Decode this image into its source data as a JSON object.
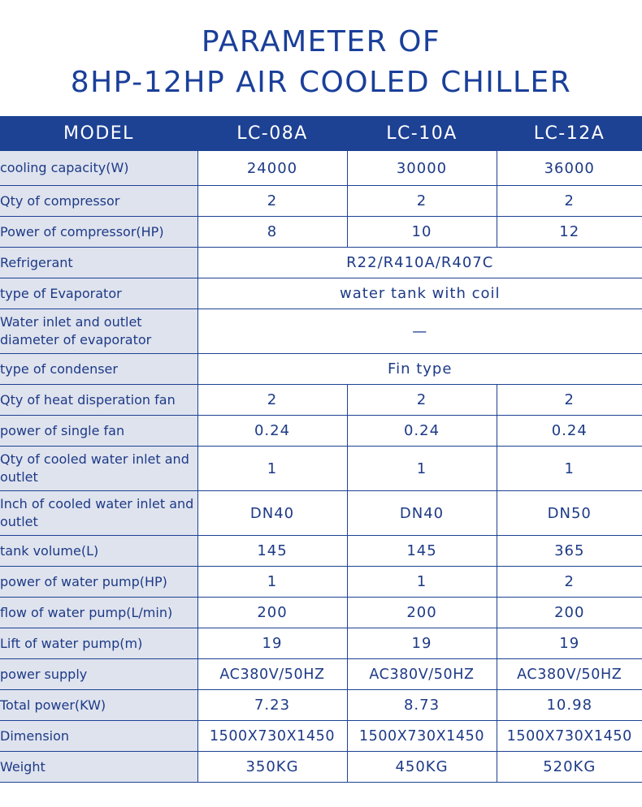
{
  "title": {
    "line1": "PARAMETER OF",
    "line2": "8HP-12HP AIR COOLED CHILLER"
  },
  "header": {
    "model_label": "MODEL",
    "models": [
      "LC-08A",
      "LC-10A",
      "LC-12A"
    ]
  },
  "rows": {
    "cooling_capacity": {
      "label": "cooling capacity(W)",
      "values": [
        "24000",
        "30000",
        "36000"
      ]
    },
    "qty_compressor": {
      "label": "Qty of compressor",
      "values": [
        "2",
        "2",
        "2"
      ]
    },
    "power_compressor": {
      "label": "Power of compressor(HP)",
      "values": [
        "8",
        "10",
        "12"
      ]
    },
    "refrigerant": {
      "label": "Refrigerant",
      "value": "R22/R410A/R407C"
    },
    "evaporator_type": {
      "label": "type of Evaporator",
      "value": "water tank with coil"
    },
    "evaporator_diameter": {
      "label": "Water inlet and outlet diameter of evaporator",
      "value": "—"
    },
    "condenser_type": {
      "label": "type of condenser",
      "value": "Fin type"
    },
    "qty_fan": {
      "label": "Qty of heat disperation fan",
      "values": [
        "2",
        "2",
        "2"
      ]
    },
    "fan_power": {
      "label": "power of single fan",
      "values": [
        "0.24",
        "0.24",
        "0.24"
      ]
    },
    "qty_water_inlet": {
      "label": "Qty of cooled water inlet and outlet",
      "values": [
        "1",
        "1",
        "1"
      ]
    },
    "inch_water_inlet": {
      "label": "Inch of cooled water inlet and outlet",
      "values": [
        "DN40",
        "DN40",
        "DN50"
      ]
    },
    "tank_volume": {
      "label": "tank volume(L)",
      "values": [
        "145",
        "145",
        "365"
      ]
    },
    "pump_power": {
      "label": "power of water pump(HP)",
      "values": [
        "1",
        "1",
        "2"
      ]
    },
    "pump_flow": {
      "label": "flow of water pump(L/min)",
      "values": [
        "200",
        "200",
        "200"
      ]
    },
    "pump_lift": {
      "label": "Lift of water pump(m)",
      "values": [
        "19",
        "19",
        "19"
      ]
    },
    "power_supply": {
      "label": "power supply",
      "values": [
        "AC380V/50HZ",
        "AC380V/50HZ",
        "AC380V/50HZ"
      ]
    },
    "total_power": {
      "label": "Total power(KW)",
      "values": [
        "7.23",
        "8.73",
        "10.98"
      ]
    },
    "dimension": {
      "label": "Dimension",
      "values": [
        "1500X730X1450",
        "1500X730X1450",
        "1500X730X1450"
      ]
    },
    "weight": {
      "label": "Weight",
      "values": [
        "350KG",
        "450KG",
        "520KG"
      ]
    }
  },
  "colors": {
    "title": "#1a3f9a",
    "header_bg": "#1d4193",
    "label_bg": "#dfe3ee",
    "border": "#1d4193"
  }
}
